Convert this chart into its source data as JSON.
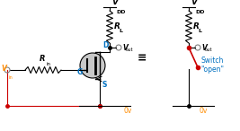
{
  "bg_color": "#ffffff",
  "line_color": "#000000",
  "red_color": "#cc0000",
  "blue_color": "#0070c0",
  "orange_color": "#ff8c00",
  "gray_color": "#808080",
  "vdd_label": "V",
  "vdd_sub": "DD",
  "rl_label": "R",
  "rl_sub": "L",
  "vout_label": "V",
  "vout_sub": "out",
  "vin_label": "V",
  "vin_sub": "in",
  "rin_label": "R",
  "rin_sub": "in",
  "g_label": "G",
  "d_label": "D",
  "s_label": "S",
  "ov_label": "0v",
  "equiv_label": "≡",
  "switch_label": "Switch",
  "open_label": "\"open\"",
  "figsize": [
    2.67,
    1.46
  ],
  "dpi": 100
}
